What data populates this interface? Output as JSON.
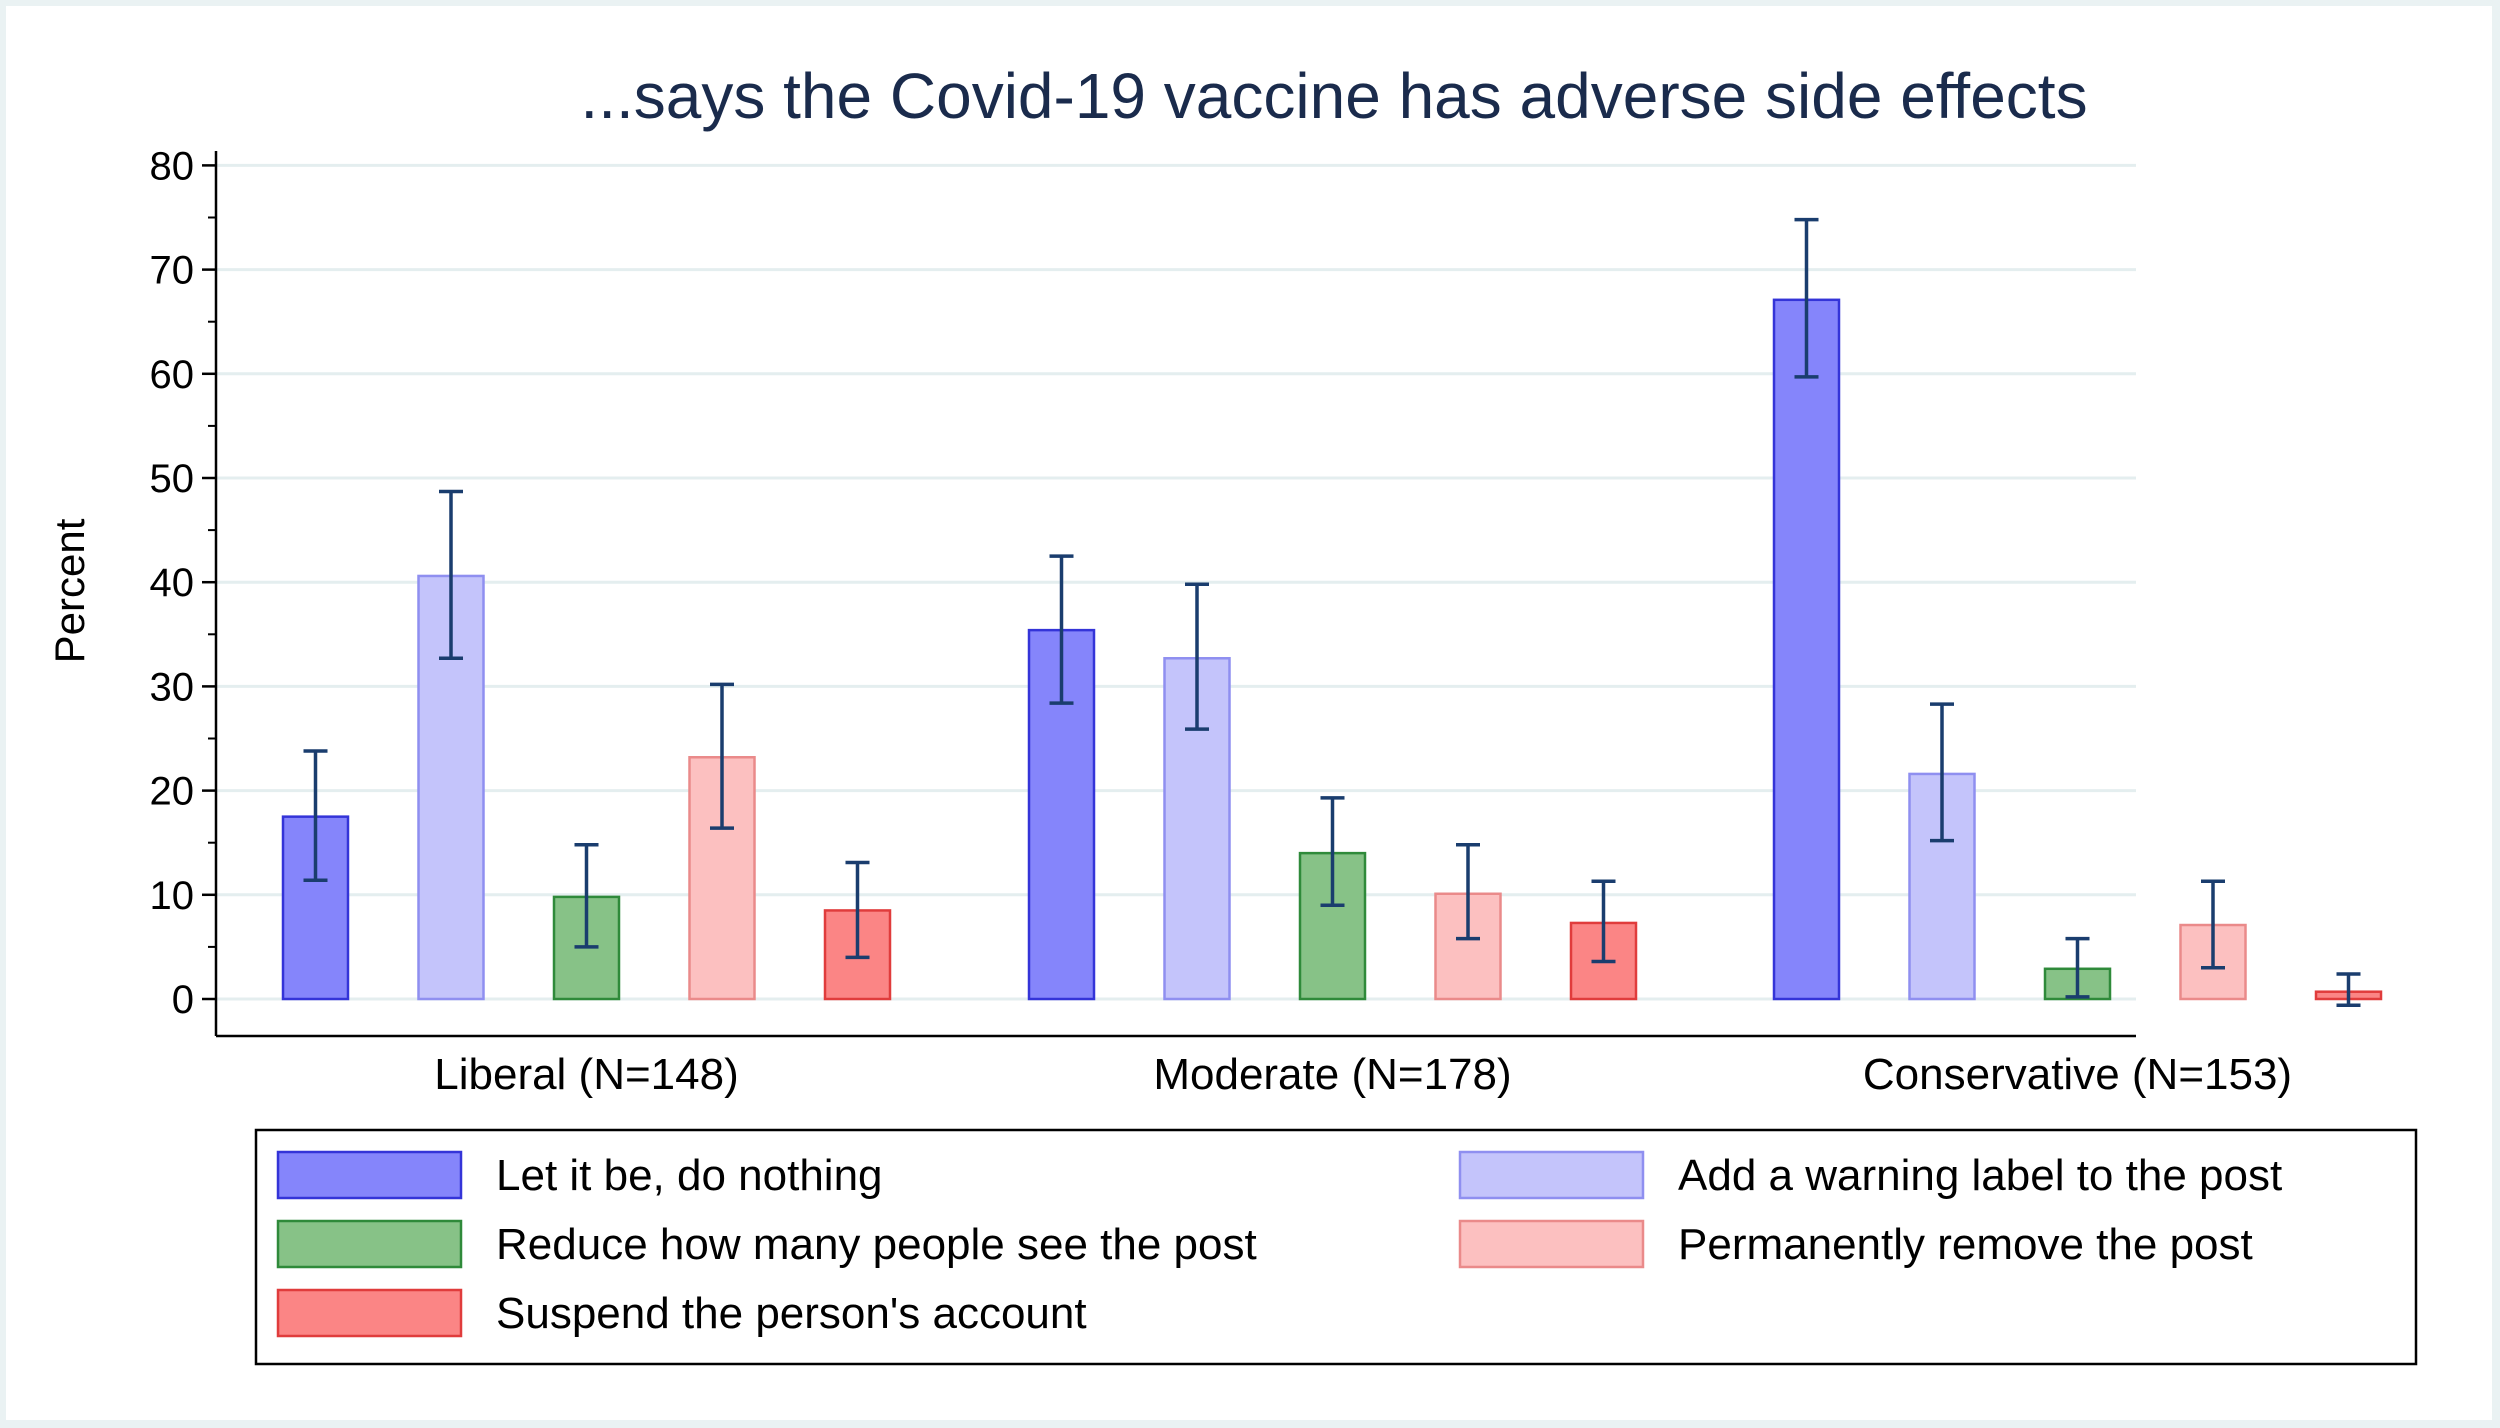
{
  "chart_data": {
    "type": "bar",
    "title": "...says the Covid-19 vaccine has adverse side effects",
    "ylabel": "Percent",
    "xlabel": "",
    "ylim": [
      0,
      80
    ],
    "yticks": [
      "0",
      "10",
      "20",
      "30",
      "40",
      "50",
      "60",
      "70",
      "80"
    ],
    "grid": true,
    "legend_position": "bottom",
    "categories": [
      "Liberal (N=148)",
      "Moderate (N=178)",
      "Conservative (N=153)"
    ],
    "series": [
      {
        "name": "Let it be, do nothing",
        "color": "#8585fb",
        "stroke": "#3434d8",
        "values": [
          17.5,
          35.4,
          67.1
        ],
        "ci_low": [
          11.4,
          28.4,
          59.7
        ],
        "ci_high": [
          23.8,
          42.5,
          74.8
        ]
      },
      {
        "name": "Add a warning label to the post",
        "color": "#c4c4fb",
        "stroke": "#8f8ff0",
        "values": [
          40.6,
          32.7,
          21.6
        ],
        "ci_low": [
          32.7,
          25.9,
          15.2
        ],
        "ci_high": [
          48.7,
          39.8,
          28.3
        ]
      },
      {
        "name": "Reduce how many people see the post",
        "color": "#87c287",
        "stroke": "#2f8a3a",
        "values": [
          9.8,
          14.0,
          2.9
        ],
        "ci_low": [
          5.0,
          9.0,
          0.2
        ],
        "ci_high": [
          14.8,
          19.3,
          5.8
        ]
      },
      {
        "name": "Permanently remove the post",
        "color": "#fcc0c0",
        "stroke": "#ea8a8a",
        "values": [
          23.2,
          10.1,
          7.1
        ],
        "ci_low": [
          16.4,
          5.8,
          3.0
        ],
        "ci_high": [
          30.2,
          14.8,
          11.3
        ]
      },
      {
        "name": "Suspend the person's account",
        "color": "#fb8585",
        "stroke": "#e03c3c",
        "values": [
          8.5,
          7.3,
          0.7
        ],
        "ci_low": [
          4.0,
          3.6,
          -0.6
        ],
        "ci_high": [
          13.1,
          11.3,
          2.4
        ]
      }
    ],
    "errorbar_color": "#1a3d6e"
  }
}
